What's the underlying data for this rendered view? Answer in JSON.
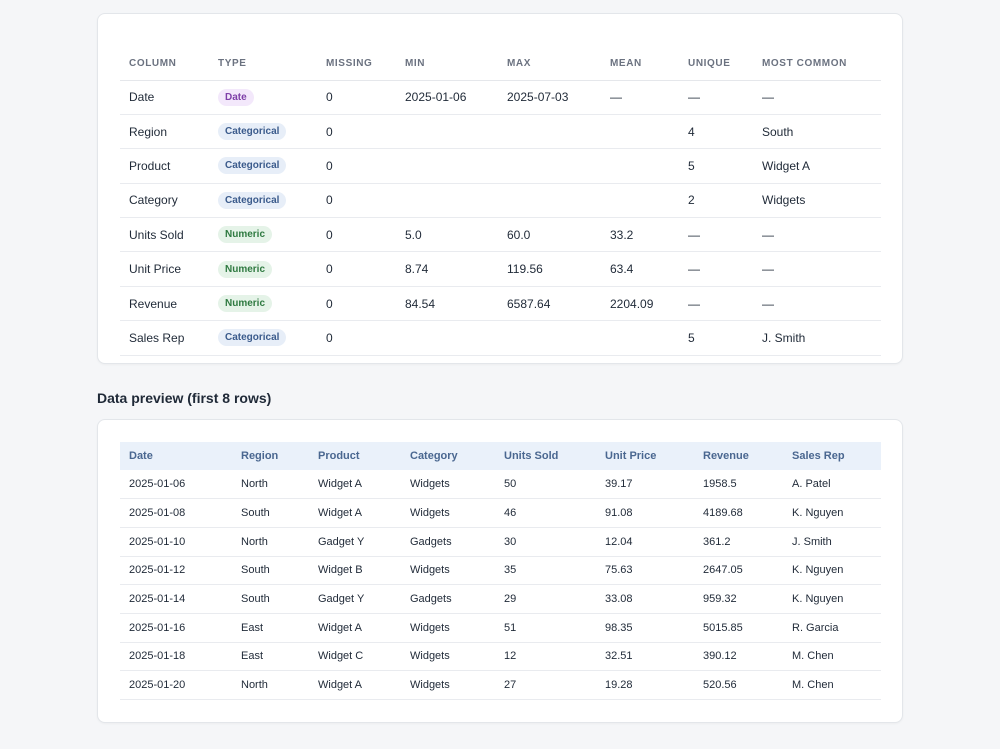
{
  "summary": {
    "headers": [
      "COLUMN",
      "TYPE",
      "MISSING",
      "MIN",
      "MAX",
      "MEAN",
      "UNIQUE",
      "MOST COMMON"
    ],
    "rows": [
      {
        "column": "Date",
        "type": "Date",
        "type_kind": "date",
        "missing": "0",
        "min": "2025-01-06",
        "max": "2025-07-03",
        "mean": "—",
        "unique": "—",
        "most_common": "—"
      },
      {
        "column": "Region",
        "type": "Categorical",
        "type_kind": "cat",
        "missing": "0",
        "min": "",
        "max": "",
        "mean": "",
        "unique": "4",
        "most_common": "South"
      },
      {
        "column": "Product",
        "type": "Categorical",
        "type_kind": "cat",
        "missing": "0",
        "min": "",
        "max": "",
        "mean": "",
        "unique": "5",
        "most_common": "Widget A"
      },
      {
        "column": "Category",
        "type": "Categorical",
        "type_kind": "cat",
        "missing": "0",
        "min": "",
        "max": "",
        "mean": "",
        "unique": "2",
        "most_common": "Widgets"
      },
      {
        "column": "Units Sold",
        "type": "Numeric",
        "type_kind": "num",
        "missing": "0",
        "min": "5.0",
        "max": "60.0",
        "mean": "33.2",
        "unique": "—",
        "most_common": "—"
      },
      {
        "column": "Unit Price",
        "type": "Numeric",
        "type_kind": "num",
        "missing": "0",
        "min": "8.74",
        "max": "119.56",
        "mean": "63.4",
        "unique": "—",
        "most_common": "—"
      },
      {
        "column": "Revenue",
        "type": "Numeric",
        "type_kind": "num",
        "missing": "0",
        "min": "84.54",
        "max": "6587.64",
        "mean": "2204.09",
        "unique": "—",
        "most_common": "—"
      },
      {
        "column": "Sales Rep",
        "type": "Categorical",
        "type_kind": "cat",
        "missing": "0",
        "min": "",
        "max": "",
        "mean": "",
        "unique": "5",
        "most_common": "J. Smith"
      }
    ]
  },
  "preview": {
    "heading": "Data preview (first 8 rows)",
    "headers": [
      "Date",
      "Region",
      "Product",
      "Category",
      "Units Sold",
      "Unit Price",
      "Revenue",
      "Sales Rep"
    ],
    "rows": [
      [
        "2025-01-06",
        "North",
        "Widget A",
        "Widgets",
        "50",
        "39.17",
        "1958.5",
        "A. Patel"
      ],
      [
        "2025-01-08",
        "South",
        "Widget A",
        "Widgets",
        "46",
        "91.08",
        "4189.68",
        "K. Nguyen"
      ],
      [
        "2025-01-10",
        "North",
        "Gadget Y",
        "Gadgets",
        "30",
        "12.04",
        "361.2",
        "J. Smith"
      ],
      [
        "2025-01-12",
        "South",
        "Widget B",
        "Widgets",
        "35",
        "75.63",
        "2647.05",
        "K. Nguyen"
      ],
      [
        "2025-01-14",
        "South",
        "Gadget Y",
        "Gadgets",
        "29",
        "33.08",
        "959.32",
        "K. Nguyen"
      ],
      [
        "2025-01-16",
        "East",
        "Widget A",
        "Widgets",
        "51",
        "98.35",
        "5015.85",
        "R. Garcia"
      ],
      [
        "2025-01-18",
        "East",
        "Widget C",
        "Widgets",
        "12",
        "32.51",
        "390.12",
        "M. Chen"
      ],
      [
        "2025-01-20",
        "North",
        "Widget A",
        "Widgets",
        "27",
        "19.28",
        "520.56",
        "M. Chen"
      ]
    ]
  }
}
